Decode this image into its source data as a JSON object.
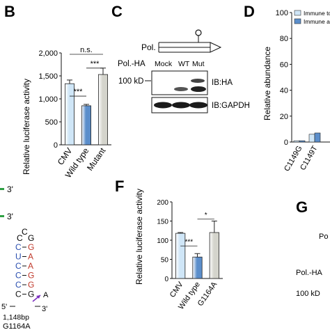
{
  "panels": {
    "B": "B",
    "C": "C",
    "D": "D",
    "F": "F",
    "G": "G"
  },
  "chart_data": [
    {
      "panel": "B",
      "type": "bar",
      "categories": [
        "CMV",
        "Wild type",
        "Mutant"
      ],
      "values": [
        1330,
        850,
        1530
      ],
      "errors": [
        80,
        30,
        140
      ],
      "ylabel": "Relative luciferase activity",
      "ylim": [
        0,
        2000
      ],
      "yticks": [
        "0",
        "500",
        "1,000",
        "1,500",
        "2,000"
      ],
      "significance": [
        {
          "from": 0,
          "to": 1,
          "label": "***"
        },
        {
          "from": 1,
          "to": 2,
          "label": "***"
        },
        {
          "from": 0,
          "to": 2,
          "label": "n.s."
        }
      ],
      "colors": [
        "#cfe6f7",
        "#5b8ecb",
        "#d4d4cc"
      ]
    },
    {
      "panel": "F",
      "type": "bar",
      "categories": [
        "CMV",
        "Wild type",
        "G1164A"
      ],
      "values": [
        118,
        56,
        120
      ],
      "errors": [
        2,
        9,
        30
      ],
      "ylabel": "Relative luciferase activity",
      "ylim": [
        0,
        200
      ],
      "yticks": [
        "0",
        "50",
        "100",
        "150",
        "200"
      ],
      "significance": [
        {
          "from": 0,
          "to": 1,
          "label": "***"
        },
        {
          "from": 1,
          "to": 2,
          "label": "*"
        }
      ],
      "colors": [
        "#cfe6f7",
        "#5b8ecb",
        "#d4d4cc"
      ]
    },
    {
      "panel": "D",
      "type": "bar",
      "categories": [
        "C1149G",
        "C1149T"
      ],
      "series": [
        {
          "name": "Immune to",
          "values": [
            1,
            6
          ]
        },
        {
          "name": "Immune ac",
          "values": [
            1,
            7
          ]
        }
      ],
      "ylabel": "Relative abundance",
      "ylim": [
        0,
        100
      ],
      "yticks": [
        "0",
        "20",
        "40",
        "60",
        "80",
        "100"
      ],
      "colors": [
        "#cfe6f7",
        "#5b8ecb"
      ]
    }
  ],
  "blot_c": {
    "pol_label": "Pol.",
    "polha_label": "Pol.-HA",
    "lanes": [
      "Mock",
      "WT",
      "Mut"
    ],
    "marker": "100 kD",
    "ib1": "IB:HA",
    "ib2": "IB:GAPDH"
  },
  "stemloop": {
    "arrow_labels": [
      "3'",
      "3'"
    ],
    "top": [
      "C",
      "C",
      "G"
    ],
    "pairs": [
      {
        "l": "C",
        "r": "G"
      },
      {
        "l": "U",
        "r": "A"
      },
      {
        "l": "C",
        "r": "A"
      },
      {
        "l": "C",
        "r": "G"
      },
      {
        "l": "C",
        "r": "G"
      },
      {
        "l": "C",
        "r": "G"
      }
    ],
    "five": "5'",
    "three": "3'",
    "mutation_base": "A",
    "position": "1,148bp",
    "mutation_label": "G1164A"
  },
  "panel_g": {
    "pol_label": "Po",
    "polha_label": "Pol.-HA",
    "marker": "100 kD"
  }
}
